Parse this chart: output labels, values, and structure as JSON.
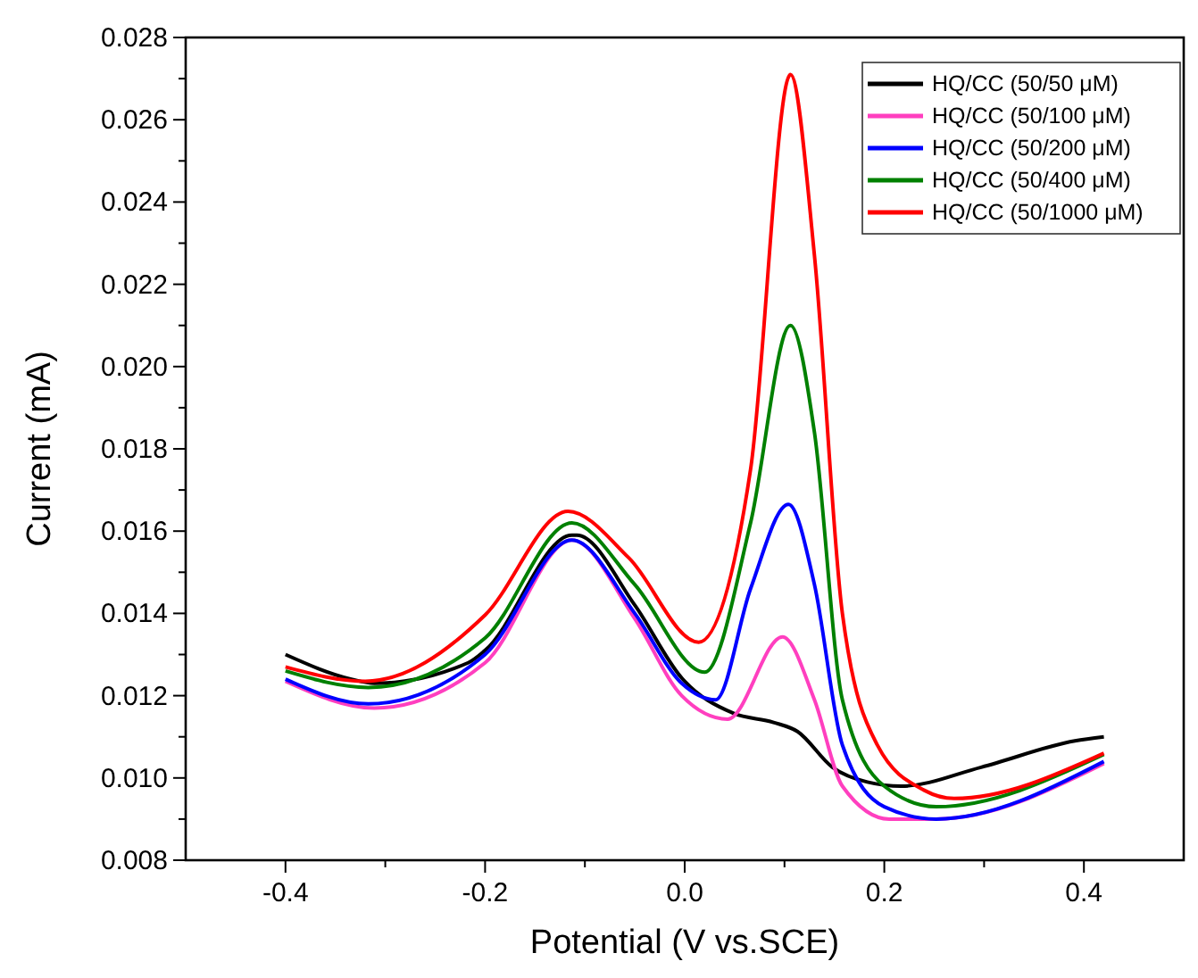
{
  "chart_data": {
    "type": "line",
    "xlabel": "Potential (V vs.SCE)",
    "ylabel": "Current (mA)",
    "xlim": [
      -0.5,
      0.5
    ],
    "ylim": [
      0.008,
      0.028
    ],
    "xticks": [
      {
        "value": -0.4,
        "label": "-0.4"
      },
      {
        "value": -0.3,
        "label": null
      },
      {
        "value": -0.2,
        "label": "-0.2"
      },
      {
        "value": -0.1,
        "label": null
      },
      {
        "value": 0,
        "label": "0.0"
      },
      {
        "value": 0.1,
        "label": null
      },
      {
        "value": 0.2,
        "label": "0.2"
      },
      {
        "value": 0.3,
        "label": null
      },
      {
        "value": 0.4,
        "label": "0.4"
      }
    ],
    "yticks": [
      {
        "value": 0.008,
        "label": "0.008"
      },
      {
        "value": 0.009,
        "label": null
      },
      {
        "value": 0.01,
        "label": "0.010"
      },
      {
        "value": 0.011,
        "label": null
      },
      {
        "value": 0.012,
        "label": "0.012"
      },
      {
        "value": 0.013,
        "label": null
      },
      {
        "value": 0.014,
        "label": "0.014"
      },
      {
        "value": 0.015,
        "label": null
      },
      {
        "value": 0.016,
        "label": "0.016"
      },
      {
        "value": 0.017,
        "label": null
      },
      {
        "value": 0.018,
        "label": "0.018"
      },
      {
        "value": 0.019,
        "label": null
      },
      {
        "value": 0.02,
        "label": "0.020"
      },
      {
        "value": 0.021,
        "label": null
      },
      {
        "value": 0.022,
        "label": "0.022"
      },
      {
        "value": 0.023,
        "label": null
      },
      {
        "value": 0.024,
        "label": "0.024"
      },
      {
        "value": 0.025,
        "label": null
      },
      {
        "value": 0.026,
        "label": "0.026"
      },
      {
        "value": 0.027,
        "label": null
      },
      {
        "value": 0.028,
        "label": "0.028"
      }
    ],
    "grid": false,
    "legend": "top right",
    "marker": "none",
    "line_style": "solid",
    "series": [
      {
        "name": "HQ/CC (50/50 μM)",
        "color": "#000000",
        "x": [
          -0.4,
          -0.334,
          -0.311,
          -0.217,
          -0.2,
          -0.113,
          -0.108,
          -0.05,
          -0.003,
          0.049,
          0.089,
          0.113,
          0.148,
          0.183,
          0.217,
          0.297,
          0.391,
          0.42
        ],
        "values": [
          0.013,
          0.0124,
          0.0123,
          0.0128,
          0.0131,
          0.0159,
          0.0159,
          0.0142,
          0.01243,
          0.01157,
          0.01135,
          0.01113,
          0.01026,
          0.0099,
          0.0098,
          0.01026,
          0.0109,
          0.011
        ]
      },
      {
        "name": "HQ/CC (50/100 μM)",
        "color": "#ff3fbf",
        "x": [
          -0.4,
          -0.311,
          -0.2,
          -0.113,
          -0.05,
          -0.003,
          0.043,
          0.098,
          0.13,
          0.158,
          0.205,
          0.252,
          0.42
        ],
        "values": [
          0.01235,
          0.0117,
          0.0128,
          0.01578,
          0.01387,
          0.012,
          0.01143,
          0.01343,
          0.0119,
          0.0098,
          0.009,
          0.009,
          0.01035
        ]
      },
      {
        "name": "HQ/CC (50/200 μM)",
        "color": "#0000ff",
        "x": [
          -0.4,
          -0.317,
          -0.2,
          -0.113,
          -0.05,
          -0.003,
          0.031,
          0.066,
          0.104,
          0.13,
          0.158,
          0.2,
          0.252,
          0.42
        ],
        "values": [
          0.0124,
          0.0118,
          0.013,
          0.01578,
          0.014,
          0.0123,
          0.0119,
          0.0146,
          0.01665,
          0.0147,
          0.0108,
          0.0093,
          0.009,
          0.0104
        ]
      },
      {
        "name": "HQ/CC (50/400 μM)",
        "color": "#008000",
        "x": [
          -0.4,
          -0.317,
          -0.2,
          -0.113,
          -0.05,
          0.02,
          0.066,
          0.106,
          0.13,
          0.158,
          0.2,
          0.252,
          0.42
        ],
        "values": [
          0.0126,
          0.0122,
          0.0134,
          0.0162,
          0.0147,
          0.01257,
          0.0162,
          0.021,
          0.0184,
          0.0119,
          0.0098,
          0.0093,
          0.01057
        ]
      },
      {
        "name": "HQ/CC (50/1000 μM)",
        "color": "#ff0000",
        "x": [
          -0.4,
          -0.32,
          -0.2,
          -0.117,
          -0.056,
          0.014,
          0.066,
          0.106,
          0.13,
          0.158,
          0.193,
          0.24,
          0.27,
          0.42
        ],
        "values": [
          0.0127,
          0.01235,
          0.01396,
          0.01648,
          0.01535,
          0.0133,
          0.0175,
          0.0271,
          0.0227,
          0.014,
          0.0108,
          0.0097,
          0.0095,
          0.0106
        ]
      }
    ]
  }
}
